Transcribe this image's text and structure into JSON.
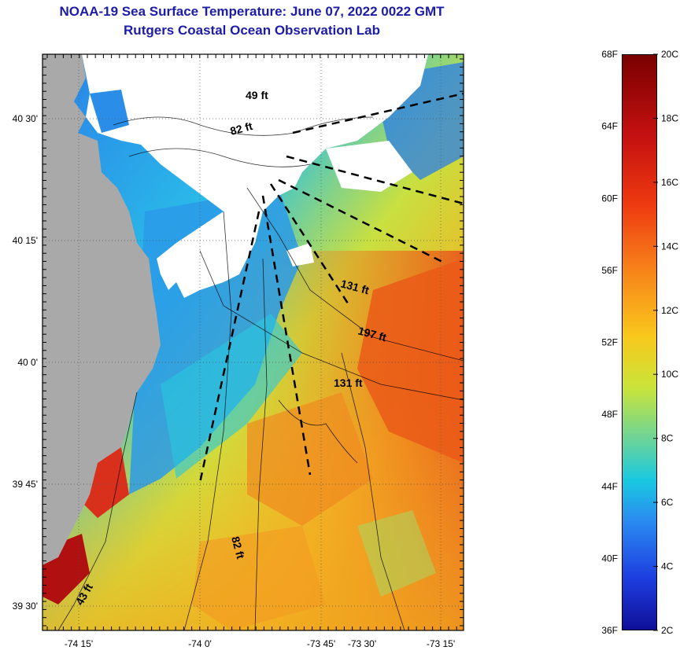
{
  "header": {
    "title_line1": "NOAA-19 Sea Surface Temperature:  June 07, 2022 0022 GMT",
    "title_line2": "Rutgers Coastal Ocean Observation Lab"
  },
  "map": {
    "lon_ticks": [
      "-74 15'",
      "-74 0'",
      "-73 45'",
      "-73 30'",
      "-73 15'"
    ],
    "lat_ticks": [
      "40 30'",
      "40 15'",
      "40 0'",
      "39 45'",
      "39 30'"
    ],
    "depth_labels": [
      "49 ft",
      "82 ft",
      "131 ft",
      "197 ft",
      "131 ft",
      "82 ft",
      "43 ft"
    ],
    "colors": {
      "land": "#a9a9a9",
      "cloud": "#ffffff",
      "warm": "#f0641e",
      "cool": "#2a9ae8"
    }
  },
  "colorbar": {
    "fahrenheit_ticks": [
      "68F",
      "64F",
      "60F",
      "56F",
      "52F",
      "48F",
      "44F",
      "40F",
      "36F"
    ],
    "celsius_ticks": [
      "20C",
      "18C",
      "16C",
      "14C",
      "12C",
      "10C",
      "8C",
      "6C",
      "4C",
      "2C"
    ],
    "range_celsius": [
      2,
      20
    ],
    "range_fahrenheit": [
      36,
      68
    ]
  }
}
